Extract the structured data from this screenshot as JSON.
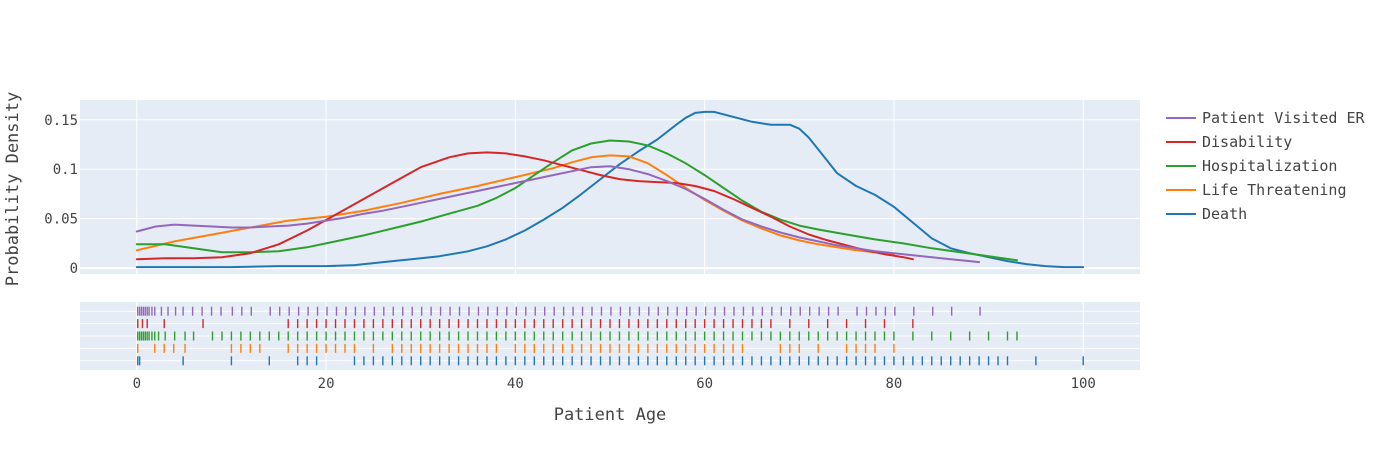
{
  "chart_data": {
    "type": "line",
    "subtype": "distplot (kernel density curves with rug plot)",
    "xlabel": "Patient Age",
    "ylabel": "Probability Density",
    "xlim": [
      -6,
      106
    ],
    "ylim": [
      -0.006,
      0.17
    ],
    "x_ticks": [
      "0",
      "20",
      "40",
      "60",
      "80",
      "100"
    ],
    "x_tick_values": [
      0,
      20,
      40,
      60,
      80,
      100
    ],
    "y_ticks": [
      "0",
      "0.05",
      "0.1",
      "0.15"
    ],
    "y_tick_values": [
      0,
      0.05,
      0.1,
      0.15
    ],
    "grid": true,
    "legend_position": "right",
    "background": "#E5ECF6",
    "series": [
      {
        "name": "Patient Visited ER",
        "color": "#9467bd",
        "x": [
          0,
          2,
          4,
          6,
          8,
          10,
          12,
          14,
          16,
          18,
          20,
          22,
          24,
          26,
          28,
          30,
          32,
          34,
          36,
          38,
          40,
          42,
          44,
          46,
          48,
          50,
          52,
          54,
          56,
          58,
          60,
          62,
          64,
          66,
          68,
          70,
          72,
          74,
          76,
          78,
          80,
          82,
          84,
          86,
          88,
          89
        ],
        "y": [
          0.037,
          0.042,
          0.044,
          0.043,
          0.042,
          0.041,
          0.041,
          0.042,
          0.043,
          0.045,
          0.048,
          0.051,
          0.055,
          0.058,
          0.062,
          0.066,
          0.07,
          0.074,
          0.078,
          0.082,
          0.086,
          0.09,
          0.094,
          0.098,
          0.102,
          0.103,
          0.1,
          0.095,
          0.088,
          0.08,
          0.07,
          0.059,
          0.049,
          0.042,
          0.036,
          0.031,
          0.027,
          0.023,
          0.02,
          0.017,
          0.015,
          0.013,
          0.011,
          0.009,
          0.007,
          0.006
        ]
      },
      {
        "name": "Disability",
        "color": "#d62728",
        "x": [
          0,
          3,
          6,
          9,
          12,
          15,
          18,
          21,
          24,
          27,
          30,
          33,
          35,
          37,
          39,
          41,
          43,
          45,
          47,
          49,
          51,
          53,
          55,
          57,
          59,
          61,
          63,
          65,
          67,
          69,
          71,
          73,
          75,
          77,
          79,
          81,
          82
        ],
        "y": [
          0.009,
          0.01,
          0.01,
          0.011,
          0.015,
          0.024,
          0.038,
          0.054,
          0.07,
          0.086,
          0.102,
          0.112,
          0.116,
          0.117,
          0.116,
          0.113,
          0.109,
          0.104,
          0.099,
          0.094,
          0.09,
          0.088,
          0.087,
          0.086,
          0.083,
          0.078,
          0.07,
          0.061,
          0.052,
          0.042,
          0.034,
          0.028,
          0.023,
          0.018,
          0.014,
          0.011,
          0.009
        ]
      },
      {
        "name": "Hospitalization",
        "color": "#2ca02c",
        "x": [
          0,
          3,
          6,
          9,
          12,
          15,
          18,
          21,
          24,
          27,
          30,
          33,
          36,
          38,
          40,
          42,
          44,
          46,
          48,
          50,
          52,
          54,
          56,
          58,
          60,
          62,
          64,
          66,
          68,
          70,
          72,
          75,
          78,
          81,
          84,
          87,
          90,
          93
        ],
        "y": [
          0.024,
          0.024,
          0.02,
          0.016,
          0.016,
          0.017,
          0.021,
          0.027,
          0.033,
          0.04,
          0.047,
          0.055,
          0.063,
          0.071,
          0.081,
          0.094,
          0.107,
          0.119,
          0.126,
          0.129,
          0.128,
          0.124,
          0.116,
          0.106,
          0.094,
          0.081,
          0.068,
          0.057,
          0.049,
          0.043,
          0.039,
          0.034,
          0.029,
          0.025,
          0.02,
          0.016,
          0.012,
          0.008
        ]
      },
      {
        "name": "Life Threatening",
        "color": "#ff7f0e",
        "x": [
          0,
          4,
          8,
          12,
          16,
          20,
          24,
          28,
          32,
          36,
          40,
          44,
          46,
          48,
          50,
          52,
          54,
          56,
          58,
          60,
          62,
          64,
          66,
          68,
          70,
          72,
          74,
          76,
          78,
          80
        ],
        "y": [
          0.018,
          0.027,
          0.034,
          0.041,
          0.048,
          0.052,
          0.058,
          0.066,
          0.075,
          0.083,
          0.092,
          0.101,
          0.107,
          0.112,
          0.114,
          0.113,
          0.106,
          0.094,
          0.081,
          0.069,
          0.058,
          0.048,
          0.04,
          0.033,
          0.028,
          0.024,
          0.021,
          0.018,
          0.016,
          0.014
        ]
      },
      {
        "name": "Death",
        "color": "#1f77b4",
        "x": [
          0,
          5,
          10,
          15,
          20,
          23,
          26,
          29,
          32,
          35,
          37,
          39,
          41,
          43,
          45,
          47,
          49,
          51,
          53,
          55,
          57,
          58,
          59,
          60,
          61,
          63,
          65,
          67,
          69,
          70,
          71,
          72,
          73,
          74,
          76,
          78,
          80,
          82,
          84,
          86,
          88,
          90,
          92,
          94,
          96,
          98,
          100
        ],
        "y": [
          0.001,
          0.001,
          0.001,
          0.002,
          0.002,
          0.003,
          0.006,
          0.009,
          0.012,
          0.017,
          0.022,
          0.029,
          0.038,
          0.049,
          0.061,
          0.075,
          0.09,
          0.105,
          0.118,
          0.13,
          0.145,
          0.152,
          0.157,
          0.158,
          0.158,
          0.153,
          0.148,
          0.145,
          0.145,
          0.141,
          0.132,
          0.12,
          0.108,
          0.096,
          0.083,
          0.074,
          0.062,
          0.046,
          0.03,
          0.02,
          0.015,
          0.011,
          0.007,
          0.004,
          0.002,
          0.001,
          0.001
        ]
      }
    ],
    "rug": [
      {
        "name": "Patient Visited ER",
        "color": "#9467bd",
        "values": [
          0.1,
          0.3,
          0.5,
          0.7,
          0.9,
          1.1,
          1.3,
          1.6,
          1.9,
          2.6,
          3.3,
          4.1,
          4.9,
          5.9,
          6.9,
          7.9,
          8.9,
          10.1,
          11.1,
          12.1,
          14.1,
          15.1,
          16.1,
          17.1,
          18.1,
          19.1,
          20.1,
          21.1,
          22.1,
          23.1,
          24.1,
          25.1,
          26.1,
          27.1,
          28.1,
          29.1,
          30.1,
          31.1,
          32.1,
          33.1,
          34.1,
          35.1,
          36.1,
          37.1,
          38.1,
          39.1,
          40.1,
          41.1,
          42.1,
          43.1,
          44.1,
          45.1,
          46.1,
          47.1,
          48.1,
          49.1,
          50.1,
          51.1,
          52.1,
          53.1,
          54.1,
          55.1,
          56.1,
          57.1,
          58.1,
          59.1,
          60.1,
          61.1,
          62.1,
          63.1,
          64.1,
          65.1,
          66.1,
          67.1,
          68.1,
          69.1,
          70.1,
          71.1,
          72.1,
          73.1,
          74.1,
          76.1,
          77.1,
          78.1,
          79.1,
          80.1,
          82.1,
          84.1,
          86.1,
          89.1
        ]
      },
      {
        "name": "Disability",
        "color": "#d62728",
        "values": [
          0.1,
          0.6,
          1.1,
          2.9,
          7.0,
          16.0,
          17.0,
          18.0,
          19.0,
          20.0,
          21.0,
          22.0,
          23.0,
          24.0,
          25.0,
          26.0,
          27.0,
          28.0,
          29.0,
          30.0,
          31.0,
          32.0,
          33.0,
          34.0,
          35.0,
          36.0,
          37.0,
          38.0,
          39.0,
          40.0,
          41.0,
          42.0,
          43.0,
          44.0,
          45.0,
          46.0,
          47.0,
          48.0,
          49.0,
          50.0,
          51.0,
          52.0,
          53.0,
          54.0,
          55.0,
          56.0,
          57.0,
          58.0,
          59.0,
          60.0,
          61.0,
          62.0,
          63.0,
          64.0,
          65.0,
          66.0,
          67.0,
          69.0,
          71.0,
          73.0,
          75.0,
          77.0,
          79.0,
          82.0
        ]
      },
      {
        "name": "Hospitalization",
        "color": "#2ca02c",
        "values": [
          0.1,
          0.3,
          0.5,
          0.7,
          0.9,
          1.1,
          1.3,
          1.6,
          1.9,
          2.3,
          3.0,
          4.0,
          5.1,
          6.0,
          8.0,
          9.0,
          10.0,
          11.0,
          12.0,
          13.0,
          14.0,
          15.0,
          16.0,
          17.0,
          18.0,
          19.0,
          20.0,
          21.0,
          22.0,
          23.0,
          24.0,
          25.0,
          26.0,
          27.0,
          28.0,
          29.0,
          30.0,
          31.0,
          32.0,
          33.0,
          34.0,
          35.0,
          36.0,
          37.0,
          38.0,
          39.0,
          40.0,
          41.0,
          42.0,
          43.0,
          44.0,
          45.0,
          46.0,
          47.0,
          48.0,
          49.0,
          50.0,
          51.0,
          52.0,
          53.0,
          54.0,
          55.0,
          56.0,
          57.0,
          58.0,
          59.0,
          60.0,
          61.0,
          62.0,
          63.0,
          64.0,
          65.0,
          66.0,
          67.0,
          68.0,
          69.0,
          70.0,
          71.0,
          72.0,
          73.0,
          74.0,
          75.0,
          76.0,
          77.0,
          78.0,
          79.0,
          80.0,
          82.0,
          84.0,
          86.0,
          88.0,
          90.0,
          92.0,
          93.0
        ]
      },
      {
        "name": "Life Threatening",
        "color": "#ff7f0e",
        "values": [
          0.1,
          1.9,
          2.9,
          3.9,
          5.1,
          10.0,
          11.0,
          12.0,
          13.0,
          16.0,
          17.0,
          18.0,
          19.0,
          20.0,
          21.0,
          22.0,
          23.0,
          25.0,
          27.0,
          28.0,
          29.0,
          30.0,
          31.0,
          32.0,
          33.0,
          34.0,
          35.0,
          36.0,
          37.0,
          38.0,
          40.0,
          41.0,
          42.0,
          43.0,
          44.0,
          45.0,
          46.0,
          47.0,
          48.0,
          49.0,
          50.0,
          51.0,
          52.0,
          53.0,
          54.0,
          55.0,
          56.0,
          57.0,
          58.0,
          59.0,
          60.0,
          61.0,
          62.0,
          63.0,
          64.0,
          68.0,
          69.0,
          70.0,
          72.0,
          75.0,
          76.0,
          77.0,
          78.0,
          80.0
        ]
      },
      {
        "name": "Death",
        "color": "#1f77b4",
        "values": [
          0.1,
          0.3,
          4.9,
          10.0,
          14.0,
          17.0,
          18.0,
          19.0,
          23.0,
          24.0,
          25.0,
          26.0,
          27.0,
          28.0,
          29.0,
          30.0,
          31.0,
          32.0,
          33.0,
          34.0,
          35.0,
          36.0,
          37.0,
          38.0,
          39.0,
          40.0,
          41.0,
          42.0,
          43.0,
          44.0,
          45.0,
          46.0,
          47.0,
          48.0,
          49.0,
          50.0,
          51.0,
          52.0,
          53.0,
          54.0,
          55.0,
          56.0,
          57.0,
          58.0,
          59.0,
          60.0,
          61.0,
          62.0,
          63.0,
          64.0,
          65.0,
          66.0,
          67.0,
          68.0,
          69.0,
          70.0,
          71.0,
          72.0,
          73.0,
          74.0,
          75.0,
          76.0,
          77.0,
          78.0,
          79.0,
          80.0,
          81.0,
          82.0,
          83.0,
          84.0,
          85.0,
          86.0,
          87.0,
          88.0,
          89.0,
          90.0,
          91.0,
          92.0,
          95.0,
          100.0
        ]
      }
    ]
  }
}
